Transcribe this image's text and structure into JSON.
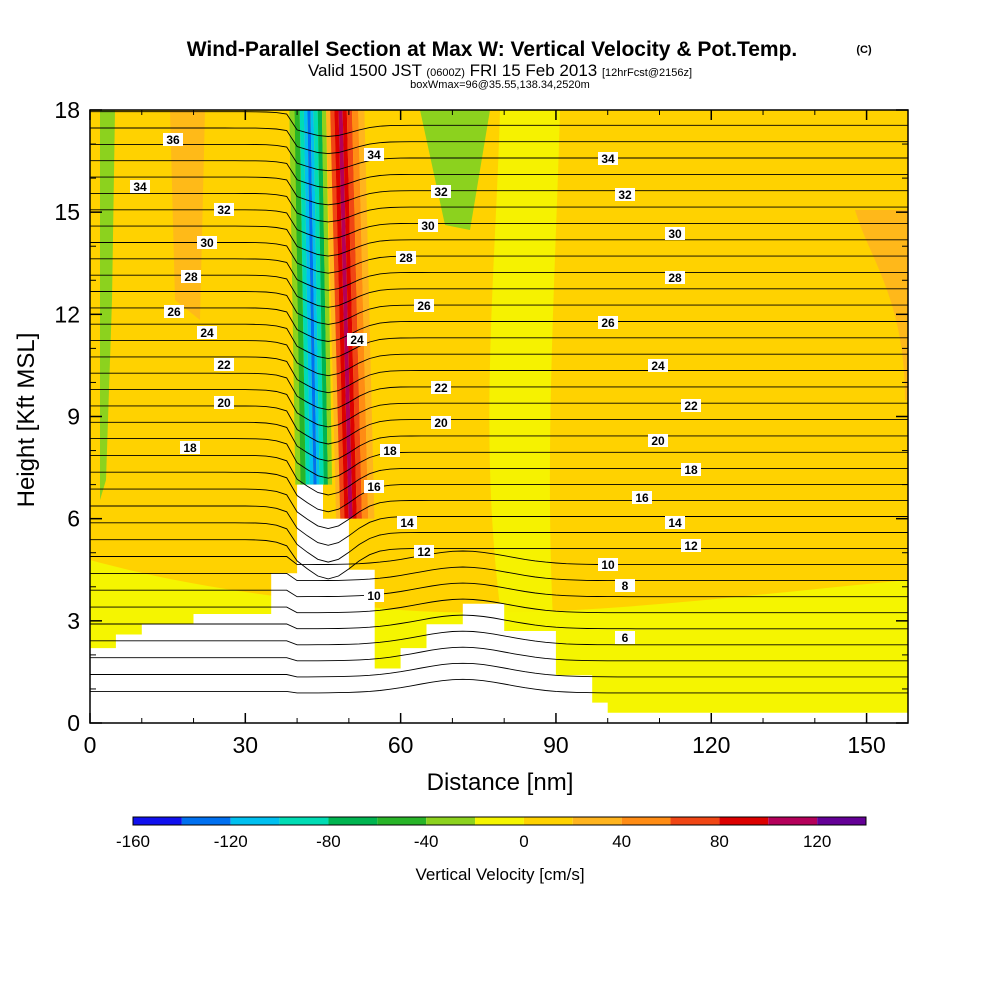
{
  "chart_data": {
    "type": "heatmap",
    "title": "Wind-Parallel Section at Max W: Vertical Velocity & Pot.Temp.",
    "title_mark": "(C)",
    "subtitle": {
      "part1": "Valid 1500 JST ",
      "part2": "(0600Z)",
      "part3": " FRI 15 Feb 2013 ",
      "part4": "[12hrFcst@2156z]"
    },
    "subtitle2": "boxWmax=96@35.55,138.34,2520m",
    "xlabel": "Distance [nm]",
    "ylabel": "Height [Kft MSL]",
    "xlim": [
      0,
      158
    ],
    "ylim": [
      0,
      18
    ],
    "xticks": [
      "0",
      "30",
      "60",
      "90",
      "120",
      "150"
    ],
    "xtick_values": [
      0,
      30,
      60,
      90,
      120,
      150
    ],
    "yticks": [
      "0",
      "3",
      "6",
      "9",
      "12",
      "15",
      "18"
    ],
    "ytick_values": [
      0,
      3,
      6,
      9,
      12,
      15,
      18
    ],
    "colorbar": {
      "label": "Vertical Velocity [cm/s]",
      "levels": [
        -160,
        -140,
        -120,
        -100,
        -80,
        -60,
        -40,
        -20,
        0,
        20,
        40,
        60,
        80,
        100,
        120,
        140
      ],
      "colors": [
        "#1010ee",
        "#0070f0",
        "#00c0f0",
        "#00dcb4",
        "#00b450",
        "#28b428",
        "#8cd21e",
        "#f5f500",
        "#ffd200",
        "#ffb41e",
        "#ff8c14",
        "#f04614",
        "#dc0000",
        "#b4005a",
        "#640096"
      ],
      "tick_labels": [
        "-160",
        "-120",
        "-80",
        "-40",
        "0",
        "40",
        "80",
        "120"
      ],
      "tick_values": [
        -160,
        -120,
        -80,
        -40,
        0,
        40,
        80,
        120
      ]
    },
    "contour_labels": [
      "36",
      "34",
      "32",
      "30",
      "28",
      "26",
      "24",
      "22",
      "20",
      "18",
      "34",
      "32",
      "30",
      "28",
      "26",
      "24",
      "22",
      "20",
      "18",
      "16",
      "14",
      "12",
      "10",
      "34",
      "32",
      "30",
      "28",
      "26",
      "24",
      "22",
      "20",
      "18",
      "16",
      "14",
      "12",
      "10",
      "8",
      "6"
    ],
    "terrain_km_kft": [
      [
        0,
        2.2
      ],
      [
        5,
        2.6
      ],
      [
        10,
        2.9
      ],
      [
        20,
        3.2
      ],
      [
        35,
        4.4
      ],
      [
        40,
        7.0
      ],
      [
        45,
        6.0
      ],
      [
        50,
        4.5
      ],
      [
        55,
        1.6
      ],
      [
        60,
        2.2
      ],
      [
        65,
        2.9
      ],
      [
        72,
        3.5
      ],
      [
        80,
        2.7
      ],
      [
        90,
        1.4
      ],
      [
        97,
        0.6
      ],
      [
        100,
        0.3
      ],
      [
        158,
        0.3
      ]
    ]
  }
}
